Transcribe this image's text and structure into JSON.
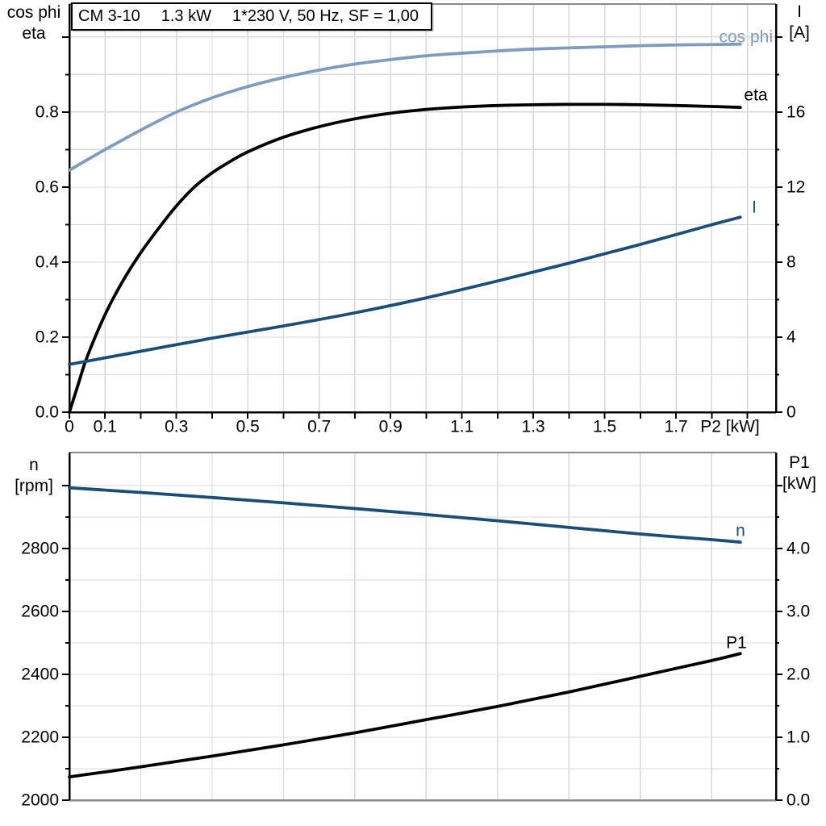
{
  "title": {
    "model": "CM 3-10",
    "power": "1.3 kW",
    "electrical": "1*230 V, 50 Hz, SF = 1,00"
  },
  "headers": {
    "top_left_line1": "cos phi",
    "top_left_line2": "eta",
    "top_right_line1": "I",
    "top_right_line2": "[A]",
    "bottom_left_line1": "n",
    "bottom_left_line2": "[rpm]",
    "bottom_right_line1": "P1",
    "bottom_right_line2": "[kW]"
  },
  "colors": {
    "cos_phi_curve": "#7E9CC0",
    "current_speed_curve": "#1A4E79",
    "black_curve": "#000000",
    "grid": "#D8D8D8",
    "frame_gray": "#8A8A8A",
    "axis_black": "#000000"
  },
  "chart_data": [
    {
      "type": "line",
      "title": "CM 3-10  1.3 kW  1*230 V, 50 Hz, SF = 1,00",
      "x_axis": {
        "label": "P2 [kW]",
        "min": 0,
        "max": 1.98,
        "tick_step": 0.1,
        "grid_step": 0.1,
        "ticks": [
          [
            "0",
            0
          ],
          [
            "0.1",
            0.1
          ],
          [
            "0.3",
            0.3
          ],
          [
            "0.5",
            0.5
          ],
          [
            "0.7",
            0.7
          ],
          [
            "0.9",
            0.9
          ],
          [
            "1.1",
            1.1
          ],
          [
            "1.3",
            1.3
          ],
          [
            "1.5",
            1.5
          ],
          [
            "1.7",
            1.7
          ]
        ]
      },
      "left_axis": {
        "label": "cos phi / eta",
        "min": 0,
        "max": 1.088,
        "major": 0.2,
        "minor": 0.1,
        "ticks": [
          [
            "0.0",
            0
          ],
          [
            "0.2",
            0.2
          ],
          [
            "0.4",
            0.4
          ],
          [
            "0.6",
            0.6
          ],
          [
            "0.8",
            0.8
          ]
        ]
      },
      "right_axis": {
        "label": "I [A]",
        "min": 0,
        "max": 21.77,
        "major": 4,
        "minor": 2,
        "ticks": [
          [
            "0",
            0
          ],
          [
            "4",
            4
          ],
          [
            "8",
            8
          ],
          [
            "12",
            12
          ],
          [
            "16",
            16
          ]
        ]
      },
      "legend_position": "curve-end-labels",
      "grid": true,
      "series": [
        {
          "name": "cos phi",
          "color": "#7E9CC0",
          "axis": "left",
          "x": [
            0,
            0.1,
            0.2,
            0.3,
            0.4,
            0.5,
            0.6,
            0.7,
            0.8,
            0.9,
            1.0,
            1.1,
            1.2,
            1.3,
            1.4,
            1.5,
            1.6,
            1.7,
            1.8,
            1.88
          ],
          "y": [
            0.645,
            0.7,
            0.752,
            0.8,
            0.838,
            0.868,
            0.892,
            0.912,
            0.928,
            0.94,
            0.95,
            0.957,
            0.963,
            0.968,
            0.971,
            0.974,
            0.977,
            0.979,
            0.98,
            0.981
          ]
        },
        {
          "name": "eta",
          "color": "#000000",
          "axis": "left",
          "x": [
            0,
            0.025,
            0.05,
            0.1,
            0.15,
            0.2,
            0.25,
            0.3,
            0.35,
            0.4,
            0.45,
            0.5,
            0.6,
            0.7,
            0.8,
            0.9,
            1.0,
            1.1,
            1.2,
            1.3,
            1.4,
            1.5,
            1.6,
            1.7,
            1.8,
            1.88
          ],
          "y": [
            0,
            0.075,
            0.148,
            0.26,
            0.35,
            0.425,
            0.49,
            0.55,
            0.6,
            0.638,
            0.668,
            0.694,
            0.733,
            0.761,
            0.782,
            0.797,
            0.807,
            0.8135,
            0.8175,
            0.8195,
            0.8205,
            0.8205,
            0.8195,
            0.8175,
            0.815,
            0.8125
          ]
        },
        {
          "name": "I",
          "color": "#1A4E79",
          "axis": "right",
          "x": [
            0,
            0.2,
            0.4,
            0.6,
            0.8,
            1.0,
            1.2,
            1.4,
            1.6,
            1.8,
            1.88
          ],
          "y": [
            2.55,
            3.25,
            3.95,
            4.6,
            5.3,
            6.1,
            7.0,
            7.95,
            8.95,
            10.0,
            10.4
          ]
        }
      ]
    },
    {
      "type": "line",
      "title": "Speed and input power vs shaft power",
      "x_axis": {
        "label": "P2 [kW]",
        "min": 0,
        "max": 1.98,
        "tick_step": null,
        "grid_step": 0.2,
        "ticks": []
      },
      "left_axis": {
        "label": "n [rpm]",
        "min": 2000,
        "max": 3105,
        "major": 200,
        "minor": 100,
        "ticks": [
          [
            "2000",
            2000
          ],
          [
            "2200",
            2200
          ],
          [
            "2400",
            2400
          ],
          [
            "2600",
            2600
          ],
          [
            "2800",
            2800
          ]
        ]
      },
      "right_axis": {
        "label": "P1 [kW]",
        "min": 0,
        "max": 5.526,
        "major": 1,
        "minor": 0.5,
        "ticks": [
          [
            "0.0",
            0
          ],
          [
            "1.0",
            1
          ],
          [
            "2.0",
            2
          ],
          [
            "3.0",
            3
          ],
          [
            "4.0",
            4
          ]
        ]
      },
      "legend_position": "curve-end-labels",
      "grid": true,
      "series": [
        {
          "name": "n",
          "color": "#1A4E79",
          "axis": "left",
          "x": [
            0,
            0.2,
            0.4,
            0.6,
            0.8,
            1.0,
            1.2,
            1.4,
            1.6,
            1.8,
            1.88
          ],
          "y": [
            2993,
            2978,
            2962,
            2945,
            2927,
            2908,
            2888,
            2867,
            2846,
            2828,
            2820
          ]
        },
        {
          "name": "P1",
          "color": "#000000",
          "axis": "right",
          "x": [
            0,
            0.2,
            0.4,
            0.6,
            0.8,
            1.0,
            1.2,
            1.4,
            1.6,
            1.8,
            1.88
          ],
          "y": [
            0.37,
            0.53,
            0.7,
            0.88,
            1.07,
            1.28,
            1.49,
            1.72,
            1.97,
            2.22,
            2.33
          ]
        }
      ]
    }
  ]
}
